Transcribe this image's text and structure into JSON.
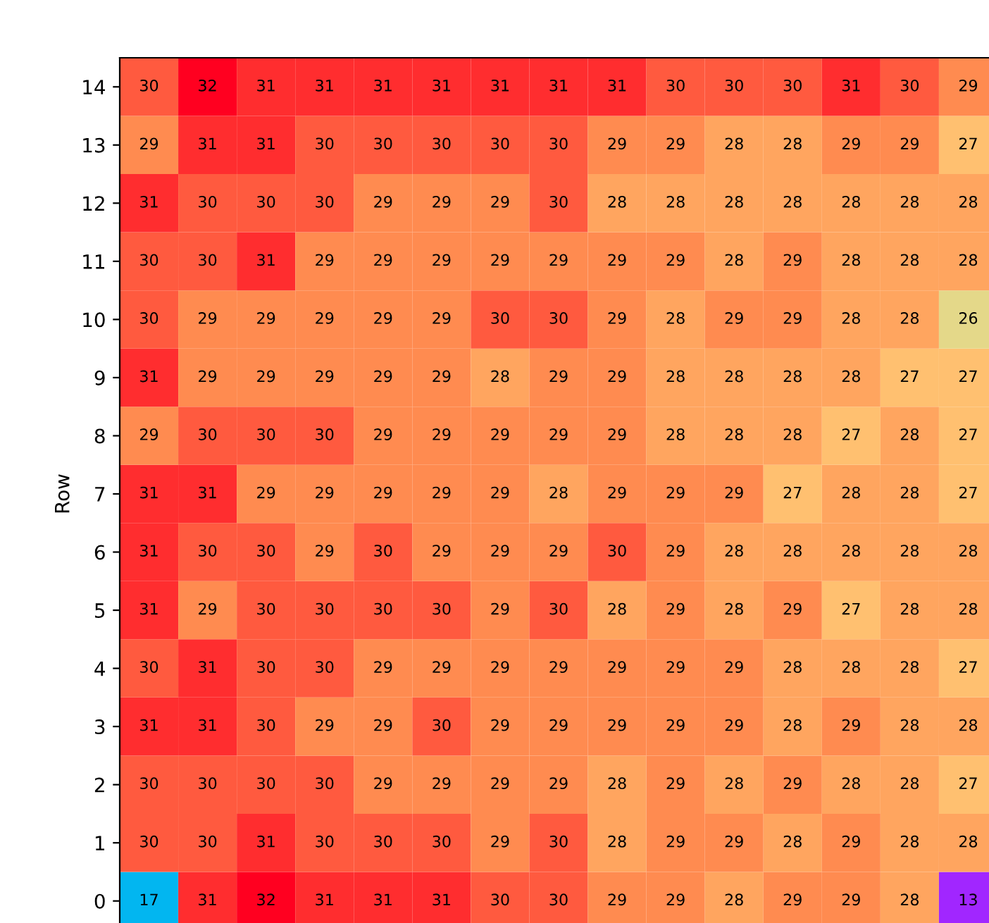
{
  "chart_data": {
    "type": "heatmap",
    "ylabel": "Row",
    "categories": [
      null,
      null,
      null,
      null,
      null,
      null,
      null,
      null,
      null,
      null,
      null,
      null,
      null,
      null,
      null
    ],
    "y_categories": [
      "14",
      "13",
      "12",
      "11",
      "10",
      "9",
      "8",
      "7",
      "6",
      "5",
      "4",
      "3",
      "2",
      "1",
      "0"
    ],
    "cells": [
      [
        30,
        32,
        31,
        31,
        31,
        31,
        31,
        31,
        31,
        30,
        30,
        30,
        31,
        30,
        29
      ],
      [
        29,
        31,
        31,
        30,
        30,
        30,
        30,
        30,
        29,
        29,
        28,
        28,
        29,
        29,
        27
      ],
      [
        31,
        30,
        30,
        30,
        29,
        29,
        29,
        30,
        28,
        28,
        28,
        28,
        28,
        28,
        28
      ],
      [
        30,
        30,
        31,
        29,
        29,
        29,
        29,
        29,
        29,
        29,
        28,
        29,
        28,
        28,
        28
      ],
      [
        30,
        29,
        29,
        29,
        29,
        29,
        30,
        30,
        29,
        28,
        29,
        29,
        28,
        28,
        26
      ],
      [
        31,
        29,
        29,
        29,
        29,
        29,
        28,
        29,
        29,
        28,
        28,
        28,
        28,
        27,
        27
      ],
      [
        29,
        30,
        30,
        30,
        29,
        29,
        29,
        29,
        29,
        28,
        28,
        28,
        27,
        28,
        27
      ],
      [
        31,
        31,
        29,
        29,
        29,
        29,
        29,
        28,
        29,
        29,
        29,
        27,
        28,
        28,
        27
      ],
      [
        31,
        30,
        30,
        29,
        30,
        29,
        29,
        29,
        30,
        29,
        28,
        28,
        28,
        28,
        28
      ],
      [
        31,
        29,
        30,
        30,
        30,
        30,
        29,
        30,
        28,
        29,
        28,
        29,
        27,
        28,
        28
      ],
      [
        30,
        31,
        30,
        30,
        29,
        29,
        29,
        29,
        29,
        29,
        29,
        28,
        28,
        28,
        27
      ],
      [
        31,
        31,
        30,
        29,
        29,
        30,
        29,
        29,
        29,
        29,
        29,
        28,
        29,
        28,
        28
      ],
      [
        30,
        30,
        30,
        30,
        29,
        29,
        29,
        29,
        28,
        29,
        28,
        29,
        28,
        28,
        27
      ],
      [
        30,
        30,
        31,
        30,
        30,
        30,
        29,
        30,
        28,
        29,
        29,
        28,
        29,
        28,
        28
      ],
      [
        17,
        31,
        32,
        31,
        31,
        31,
        30,
        30,
        29,
        29,
        28,
        29,
        29,
        28,
        13
      ]
    ],
    "data_labels": true
  }
}
